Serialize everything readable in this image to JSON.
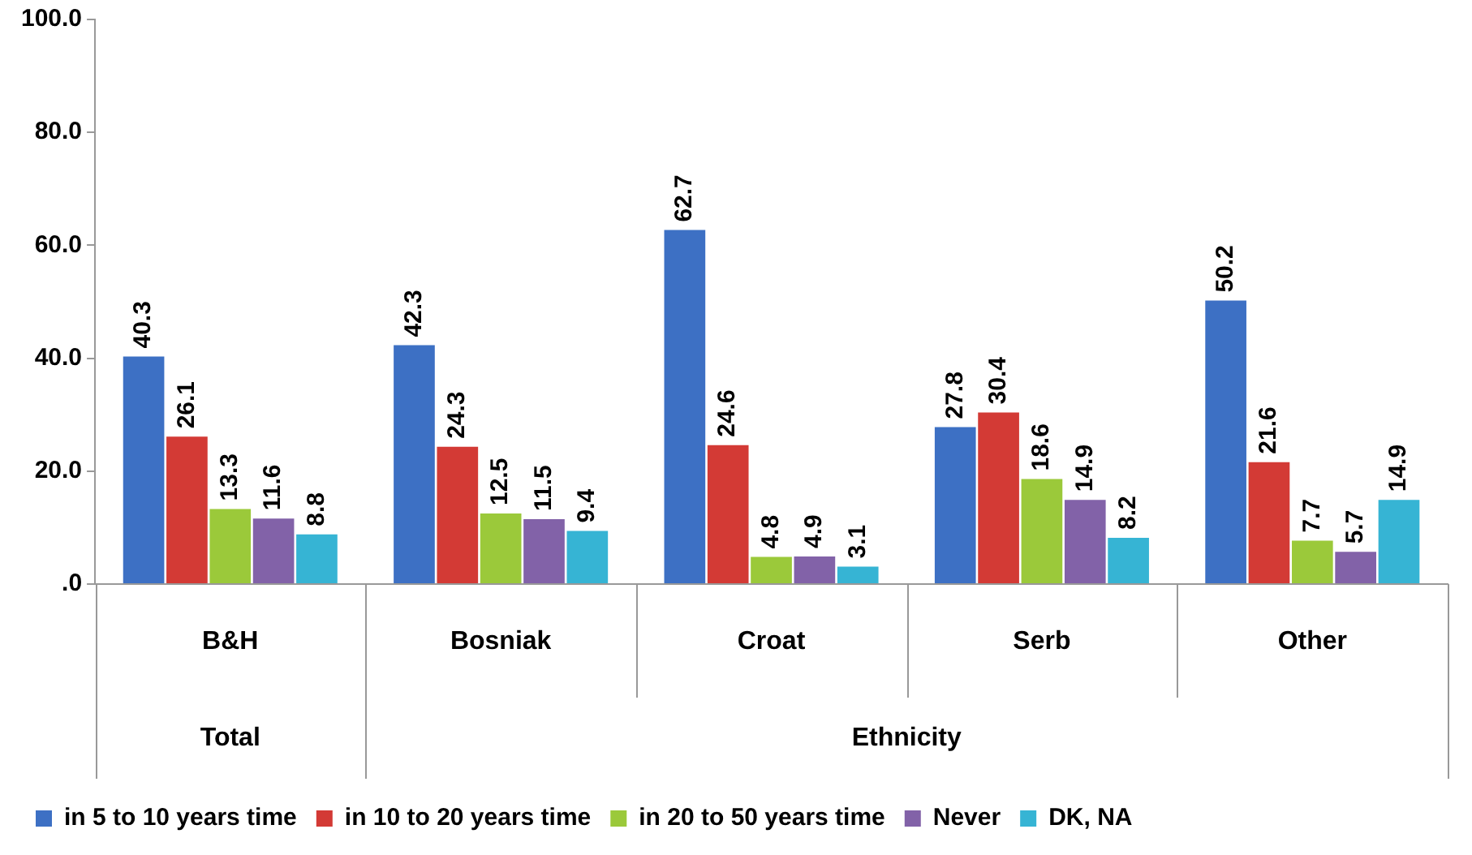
{
  "chart_data": {
    "type": "bar",
    "categories": [
      "B&H",
      "Bosniak",
      "Croat",
      "Serb",
      "Other"
    ],
    "series": [
      {
        "name": "in 5 to 10 years time",
        "color": "#3d70c4",
        "values": [
          40.3,
          42.3,
          62.7,
          27.8,
          50.2
        ]
      },
      {
        "name": "in 10 to 20 years time",
        "color": "#d33a35",
        "values": [
          26.1,
          24.3,
          24.6,
          30.4,
          21.6
        ]
      },
      {
        "name": "in 20 to 50 years time",
        "color": "#9bc93a",
        "values": [
          13.3,
          12.5,
          4.8,
          18.6,
          7.7
        ]
      },
      {
        "name": "Never",
        "color": "#8262a8",
        "values": [
          11.6,
          11.5,
          4.9,
          14.9,
          5.7
        ]
      },
      {
        "name": "DK, NA",
        "color": "#36b4d4",
        "values": [
          8.8,
          9.4,
          3.1,
          8.2,
          14.9
        ]
      }
    ],
    "ylim": [
      0,
      100
    ],
    "yticks": [
      {
        "value": 0,
        "label": ".0"
      },
      {
        "value": 20,
        "label": "20.0"
      },
      {
        "value": 40,
        "label": "40.0"
      },
      {
        "value": 60,
        "label": "60.0"
      },
      {
        "value": 80,
        "label": "80.0"
      },
      {
        "value": 100,
        "label": "100.0"
      }
    ],
    "annotations": [
      "Total",
      "Ethnicity"
    ],
    "data_labels": true,
    "grid": false,
    "legend": "bottom",
    "marker": "square"
  }
}
